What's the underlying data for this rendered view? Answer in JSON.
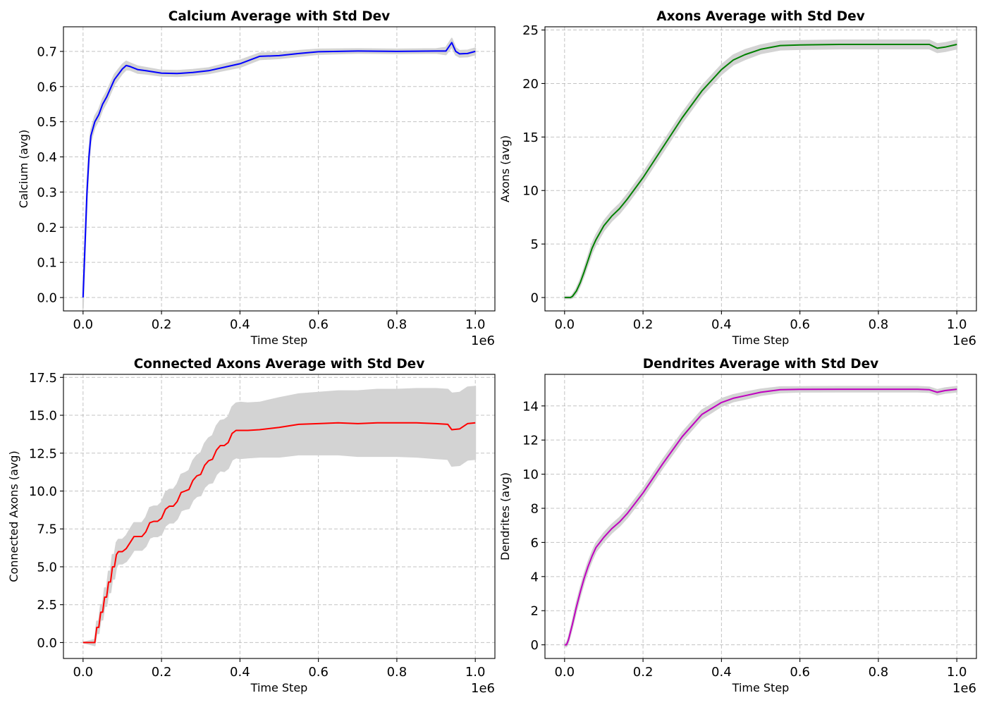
{
  "chart_data": [
    {
      "type": "line",
      "title": "Calcium Average with Std Dev",
      "xlabel": "Time Step",
      "ylabel": "Calcium (avg)",
      "x_offset_label": "1e6",
      "xlim": [
        -0.05,
        1.05
      ],
      "ylim": [
        -0.038,
        0.77
      ],
      "xticks": [
        0.0,
        0.2,
        0.4,
        0.6,
        0.8,
        1.0
      ],
      "xtick_labels": [
        "0.0",
        "0.2",
        "0.4",
        "0.6",
        "0.8",
        "1.0"
      ],
      "yticks": [
        0.0,
        0.1,
        0.2,
        0.3,
        0.4,
        0.5,
        0.6,
        0.7
      ],
      "ytick_labels": [
        "0.0",
        "0.1",
        "0.2",
        "0.3",
        "0.4",
        "0.5",
        "0.6",
        "0.7"
      ],
      "grid": true,
      "line_color": "#0000ff",
      "band_color": "#d3d3d3",
      "series": [
        {
          "x": [
            0.0,
            0.005,
            0.01,
            0.015,
            0.02,
            0.03,
            0.04,
            0.05,
            0.06,
            0.08,
            0.1,
            0.11,
            0.12,
            0.14,
            0.16,
            0.2,
            0.24,
            0.28,
            0.32,
            0.36,
            0.4,
            0.45,
            0.5,
            0.55,
            0.6,
            0.7,
            0.8,
            0.9,
            0.925,
            0.94,
            0.95,
            0.96,
            0.98,
            1.0
          ],
          "y": [
            0.0,
            0.15,
            0.3,
            0.4,
            0.46,
            0.5,
            0.52,
            0.55,
            0.57,
            0.62,
            0.65,
            0.66,
            0.657,
            0.648,
            0.645,
            0.638,
            0.637,
            0.64,
            0.645,
            0.655,
            0.665,
            0.686,
            0.688,
            0.694,
            0.699,
            0.701,
            0.7,
            0.701,
            0.701,
            0.725,
            0.7,
            0.693,
            0.694,
            0.7
          ],
          "std": [
            0.03,
            0.02,
            0.02,
            0.018,
            0.016,
            0.016,
            0.015,
            0.015,
            0.015,
            0.014,
            0.013,
            0.012,
            0.01,
            0.01,
            0.009,
            0.008,
            0.008,
            0.008,
            0.008,
            0.009,
            0.01,
            0.009,
            0.008,
            0.008,
            0.007,
            0.006,
            0.006,
            0.006,
            0.01,
            0.012,
            0.01,
            0.009,
            0.009,
            0.009
          ]
        }
      ]
    },
    {
      "type": "line",
      "title": "Axons Average with Std Dev",
      "xlabel": "Time Step",
      "ylabel": "Axons (avg)",
      "x_offset_label": "1e6",
      "xlim": [
        -0.05,
        1.05
      ],
      "ylim": [
        -1.25,
        25.3
      ],
      "xticks": [
        0.0,
        0.2,
        0.4,
        0.6,
        0.8,
        1.0
      ],
      "xtick_labels": [
        "0.0",
        "0.2",
        "0.4",
        "0.6",
        "0.8",
        "1.0"
      ],
      "yticks": [
        0,
        5,
        10,
        15,
        20,
        25
      ],
      "ytick_labels": [
        "0",
        "5",
        "10",
        "15",
        "20",
        "25"
      ],
      "grid": true,
      "line_color": "#008000",
      "band_color": "#d3d3d3",
      "series": [
        {
          "x": [
            0.0,
            0.015,
            0.02,
            0.03,
            0.04,
            0.05,
            0.06,
            0.07,
            0.08,
            0.1,
            0.12,
            0.14,
            0.16,
            0.2,
            0.25,
            0.3,
            0.35,
            0.4,
            0.43,
            0.46,
            0.5,
            0.55,
            0.6,
            0.7,
            0.8,
            0.9,
            0.93,
            0.95,
            0.97,
            1.0
          ],
          "y": [
            0.0,
            0.0,
            0.1,
            0.6,
            1.4,
            2.4,
            3.5,
            4.6,
            5.4,
            6.7,
            7.6,
            8.3,
            9.2,
            11.2,
            14.0,
            16.8,
            19.3,
            21.3,
            22.2,
            22.7,
            23.2,
            23.55,
            23.6,
            23.65,
            23.65,
            23.65,
            23.65,
            23.3,
            23.4,
            23.65
          ],
          "std": [
            0.1,
            0.1,
            0.15,
            0.25,
            0.3,
            0.35,
            0.4,
            0.45,
            0.45,
            0.45,
            0.45,
            0.45,
            0.45,
            0.45,
            0.45,
            0.45,
            0.45,
            0.45,
            0.45,
            0.45,
            0.4,
            0.4,
            0.4,
            0.4,
            0.4,
            0.4,
            0.4,
            0.4,
            0.4,
            0.4
          ]
        }
      ]
    },
    {
      "type": "line",
      "title": "Connected Axons Average with Std Dev",
      "xlabel": "Time Step",
      "ylabel": "Connected Axons (avg)",
      "x_offset_label": "1e6",
      "xlim": [
        -0.05,
        1.05
      ],
      "ylim": [
        -1.05,
        17.7
      ],
      "xticks": [
        0.0,
        0.2,
        0.4,
        0.6,
        0.8,
        1.0
      ],
      "xtick_labels": [
        "0.0",
        "0.2",
        "0.4",
        "0.6",
        "0.8",
        "1.0"
      ],
      "yticks": [
        0.0,
        2.5,
        5.0,
        7.5,
        10.0,
        12.5,
        15.0,
        17.5
      ],
      "ytick_labels": [
        "0.0",
        "2.5",
        "5.0",
        "7.5",
        "10.0",
        "12.5",
        "15.0",
        "17.5"
      ],
      "grid": true,
      "line_color": "#ff0000",
      "band_color": "#d3d3d3",
      "series": [
        {
          "x": [
            0.0,
            0.03,
            0.035,
            0.04,
            0.045,
            0.05,
            0.055,
            0.06,
            0.065,
            0.07,
            0.075,
            0.08,
            0.085,
            0.09,
            0.095,
            0.1,
            0.11,
            0.12,
            0.13,
            0.14,
            0.15,
            0.16,
            0.17,
            0.18,
            0.19,
            0.2,
            0.21,
            0.22,
            0.23,
            0.24,
            0.25,
            0.26,
            0.27,
            0.28,
            0.29,
            0.3,
            0.31,
            0.32,
            0.33,
            0.34,
            0.35,
            0.36,
            0.37,
            0.38,
            0.39,
            0.4,
            0.42,
            0.45,
            0.5,
            0.55,
            0.6,
            0.65,
            0.7,
            0.75,
            0.8,
            0.85,
            0.9,
            0.93,
            0.94,
            0.96,
            0.98,
            1.0
          ],
          "y": [
            0.0,
            0.0,
            1.0,
            1.0,
            2.0,
            2.0,
            3.0,
            3.0,
            4.0,
            4.0,
            5.0,
            5.0,
            5.8,
            6.0,
            6.0,
            6.0,
            6.2,
            6.6,
            7.0,
            7.0,
            7.0,
            7.3,
            7.9,
            8.0,
            8.0,
            8.2,
            8.8,
            9.0,
            9.0,
            9.3,
            9.9,
            10.0,
            10.1,
            10.7,
            11.0,
            11.1,
            11.7,
            12.0,
            12.1,
            12.7,
            13.0,
            13.0,
            13.2,
            13.8,
            14.0,
            14.0,
            14.0,
            14.05,
            14.2,
            14.4,
            14.45,
            14.5,
            14.45,
            14.5,
            14.5,
            14.5,
            14.45,
            14.4,
            14.05,
            14.1,
            14.45,
            14.5
          ],
          "std": [
            0.0,
            0.2,
            0.4,
            0.4,
            0.5,
            0.5,
            0.6,
            0.6,
            0.7,
            0.7,
            0.8,
            0.8,
            0.8,
            0.8,
            0.8,
            0.8,
            0.85,
            0.9,
            0.9,
            0.9,
            0.9,
            0.95,
            1.0,
            1.0,
            1.0,
            1.05,
            1.1,
            1.1,
            1.1,
            1.15,
            1.2,
            1.2,
            1.25,
            1.3,
            1.35,
            1.4,
            1.45,
            1.5,
            1.55,
            1.6,
            1.65,
            1.7,
            1.7,
            1.75,
            1.8,
            1.85,
            1.8,
            1.8,
            1.95,
            2.0,
            2.05,
            2.1,
            2.15,
            2.2,
            2.2,
            2.25,
            2.3,
            2.3,
            2.4,
            2.4,
            2.4,
            2.4
          ]
        }
      ]
    },
    {
      "type": "line",
      "title": "Dendrites Average with Std Dev",
      "xlabel": "Time Step",
      "ylabel": "Dendrites (avg)",
      "x_offset_label": "1e6",
      "xlim": [
        -0.05,
        1.05
      ],
      "ylim": [
        -0.8,
        15.85
      ],
      "xticks": [
        0.0,
        0.2,
        0.4,
        0.6,
        0.8,
        1.0
      ],
      "xtick_labels": [
        "0.0",
        "0.2",
        "0.4",
        "0.6",
        "0.8",
        "1.0"
      ],
      "yticks": [
        0,
        2,
        4,
        6,
        8,
        10,
        12,
        14
      ],
      "ytick_labels": [
        "0",
        "2",
        "4",
        "6",
        "8",
        "10",
        "12",
        "14"
      ],
      "grid": true,
      "line_color": "#bf00bf",
      "band_color": "#d3d3d3",
      "series": [
        {
          "x": [
            0.0,
            0.005,
            0.01,
            0.02,
            0.03,
            0.04,
            0.05,
            0.06,
            0.07,
            0.08,
            0.1,
            0.12,
            0.14,
            0.16,
            0.2,
            0.25,
            0.3,
            0.35,
            0.4,
            0.43,
            0.46,
            0.5,
            0.55,
            0.6,
            0.7,
            0.8,
            0.9,
            0.93,
            0.95,
            0.97,
            1.0
          ],
          "y": [
            0.0,
            0.0,
            0.3,
            1.2,
            2.2,
            3.1,
            3.9,
            4.6,
            5.2,
            5.7,
            6.3,
            6.8,
            7.2,
            7.7,
            8.9,
            10.6,
            12.2,
            13.5,
            14.2,
            14.45,
            14.6,
            14.8,
            14.95,
            14.97,
            14.98,
            14.98,
            14.98,
            14.95,
            14.8,
            14.9,
            14.98
          ],
          "std": [
            0.1,
            0.1,
            0.15,
            0.2,
            0.25,
            0.25,
            0.25,
            0.25,
            0.25,
            0.25,
            0.25,
            0.25,
            0.25,
            0.25,
            0.25,
            0.25,
            0.25,
            0.25,
            0.22,
            0.2,
            0.2,
            0.18,
            0.16,
            0.15,
            0.15,
            0.15,
            0.15,
            0.15,
            0.15,
            0.15,
            0.15
          ]
        }
      ]
    }
  ]
}
